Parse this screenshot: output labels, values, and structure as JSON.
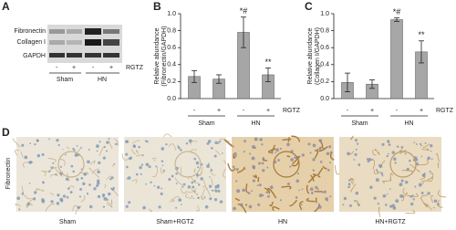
{
  "panel_labels": [
    "A",
    "B",
    "C",
    "D"
  ],
  "blot": {
    "rows": [
      "Fibronectin",
      "Collagen I",
      "GAPDH"
    ],
    "lanes": [
      "-",
      "+",
      "-",
      "+"
    ],
    "treatment": "RGTZ",
    "groups": [
      "Sham",
      "HN"
    ]
  },
  "chart_data": [
    {
      "type": "bar",
      "ylabel": [
        "Relative abundance",
        "(Fibronectin/GAPDH)"
      ],
      "categories": [
        "-",
        "+",
        "-",
        "+"
      ],
      "groups": [
        "Sham",
        "HN"
      ],
      "xlabel": "RGTZ",
      "values": [
        0.26,
        0.23,
        0.78,
        0.28
      ],
      "errors": [
        0.07,
        0.05,
        0.18,
        0.08
      ],
      "annotations": [
        null,
        null,
        "*#",
        "**"
      ],
      "color": "#a6a6a6",
      "ylim": [
        0,
        1
      ],
      "yticks": [
        {
          "value": 0,
          "label": "0.0"
        },
        0.2,
        0.4,
        0.6,
        0.8,
        {
          "value": 1,
          "label": "1.0"
        }
      ]
    },
    {
      "type": "bar",
      "ylabel": [
        "Relative abundance",
        "(Collagen I/GAPDH)"
      ],
      "categories": [
        "-",
        "+",
        "-",
        "+"
      ],
      "groups": [
        "Sham",
        "HN"
      ],
      "xlabel": "RGTZ",
      "values": [
        0.19,
        0.17,
        0.93,
        0.55
      ],
      "errors": [
        0.11,
        0.05,
        0.02,
        0.13
      ],
      "annotations": [
        null,
        null,
        "*#",
        "**"
      ],
      "color": "#a6a6a6",
      "ylim": [
        0,
        1
      ],
      "yticks": [
        {
          "value": 0,
          "label": "0.0"
        },
        0.2,
        0.4,
        0.6,
        0.8,
        {
          "value": 1,
          "label": "1.0"
        }
      ]
    }
  ],
  "micrographs": {
    "stain": "Fibronectin",
    "labels": [
      "Sham",
      "Sham+RGTZ",
      "HN",
      "HN+RGTZ"
    ]
  }
}
